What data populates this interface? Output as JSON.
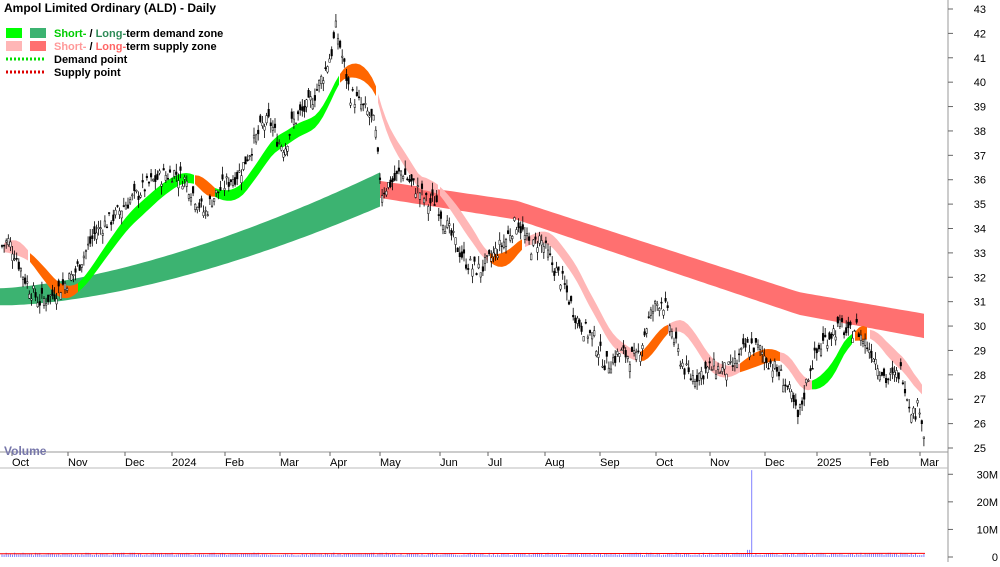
{
  "chart": {
    "title": "Ampol Limited Ordinary (ALD) - Daily",
    "legend": [
      {
        "short_color": "#00ff00",
        "long_color": "#3cb371",
        "prefix_short": "Short-",
        "sep": " / ",
        "prefix_long": "Long-",
        "suffix": "term demand zone",
        "prefix_short_color": "#00cc00",
        "prefix_long_color": "#2e8b57"
      },
      {
        "short_color": "#ffb6b6",
        "long_color": "#ff7070",
        "prefix_short": "Short-",
        "sep": " / ",
        "prefix_long": "Long-",
        "suffix": "term supply zone",
        "prefix_short_color": "#ff9999",
        "prefix_long_color": "#ff6666"
      },
      {
        "line_color": "#00dd00",
        "label": "Demand point"
      },
      {
        "line_color": "#dd0000",
        "label": "Supply point"
      }
    ],
    "volume_label": "Volume"
  },
  "chart_data": {
    "type": "candlestick",
    "title": "Ampol Limited Ordinary (ALD) - Daily",
    "y_ticks": [
      25,
      26,
      27,
      28,
      29,
      30,
      31,
      32,
      33,
      34,
      35,
      36,
      37,
      38,
      39,
      40,
      41,
      42,
      43
    ],
    "ylim": [
      24.5,
      43.2
    ],
    "x_ticks": [
      "Oct",
      "Nov",
      "Dec",
      "2024",
      "Feb",
      "Mar",
      "Apr",
      "May",
      "Jun",
      "Jul",
      "Aug",
      "Sep",
      "Oct",
      "Nov",
      "Dec",
      "2025",
      "Feb",
      "Mar"
    ],
    "volume_ticks": [
      "0",
      "10M",
      "20M",
      "30M"
    ],
    "volume_ylim": [
      0,
      33
    ],
    "price_path": [
      [
        0,
        33.2
      ],
      [
        8,
        33.5
      ],
      [
        15,
        33.0
      ],
      [
        22,
        32.2
      ],
      [
        30,
        31.5
      ],
      [
        40,
        31.0
      ],
      [
        50,
        31.2
      ],
      [
        58,
        31.5
      ],
      [
        66,
        31.8
      ],
      [
        75,
        32.2
      ],
      [
        85,
        33.0
      ],
      [
        95,
        33.8
      ],
      [
        105,
        34.2
      ],
      [
        115,
        34.5
      ],
      [
        125,
        35.0
      ],
      [
        135,
        35.3
      ],
      [
        145,
        35.7
      ],
      [
        155,
        36.0
      ],
      [
        165,
        36.2
      ],
      [
        175,
        36.3
      ],
      [
        185,
        36.0
      ],
      [
        195,
        35.3
      ],
      [
        205,
        34.6
      ],
      [
        212,
        35.2
      ],
      [
        220,
        35.6
      ],
      [
        230,
        36.0
      ],
      [
        240,
        36.3
      ],
      [
        248,
        37.0
      ],
      [
        255,
        37.6
      ],
      [
        262,
        38.2
      ],
      [
        270,
        38.4
      ],
      [
        278,
        37.6
      ],
      [
        285,
        37.3
      ],
      [
        292,
        38.3
      ],
      [
        300,
        38.7
      ],
      [
        308,
        39.0
      ],
      [
        316,
        39.6
      ],
      [
        325,
        40.5
      ],
      [
        332,
        41.3
      ],
      [
        336,
        42.2
      ],
      [
        340,
        41.5
      ],
      [
        345,
        40.5
      ],
      [
        350,
        39.5
      ],
      [
        356,
        39.3
      ],
      [
        362,
        39.0
      ],
      [
        370,
        38.6
      ],
      [
        375,
        38.2
      ],
      [
        378,
        36.8
      ],
      [
        382,
        35.5
      ],
      [
        388,
        35.8
      ],
      [
        395,
        36.0
      ],
      [
        402,
        36.4
      ],
      [
        410,
        35.9
      ],
      [
        420,
        35.5
      ],
      [
        428,
        35.0
      ],
      [
        436,
        35.2
      ],
      [
        442,
        34.5
      ],
      [
        450,
        33.8
      ],
      [
        458,
        33.2
      ],
      [
        465,
        32.7
      ],
      [
        472,
        32.4
      ],
      [
        480,
        32.3
      ],
      [
        488,
        32.6
      ],
      [
        495,
        33.0
      ],
      [
        505,
        33.5
      ],
      [
        512,
        34.0
      ],
      [
        518,
        34.3
      ],
      [
        525,
        33.6
      ],
      [
        532,
        33.2
      ],
      [
        540,
        33.6
      ],
      [
        547,
        33.0
      ],
      [
        555,
        32.3
      ],
      [
        563,
        31.8
      ],
      [
        570,
        31.0
      ],
      [
        578,
        30.2
      ],
      [
        586,
        29.8
      ],
      [
        594,
        29.5
      ],
      [
        600,
        28.9
      ],
      [
        606,
        28.4
      ],
      [
        612,
        28.6
      ],
      [
        620,
        28.9
      ],
      [
        628,
        28.8
      ],
      [
        636,
        28.6
      ],
      [
        642,
        29.3
      ],
      [
        648,
        30.2
      ],
      [
        655,
        30.8
      ],
      [
        661,
        31.1
      ],
      [
        666,
        30.7
      ],
      [
        672,
        29.7
      ],
      [
        678,
        28.9
      ],
      [
        684,
        28.3
      ],
      [
        690,
        27.9
      ],
      [
        698,
        28.0
      ],
      [
        706,
        28.2
      ],
      [
        714,
        28.3
      ],
      [
        722,
        28.2
      ],
      [
        730,
        28.2
      ],
      [
        738,
        28.6
      ],
      [
        745,
        29.1
      ],
      [
        752,
        29.2
      ],
      [
        760,
        29.0
      ],
      [
        768,
        28.6
      ],
      [
        776,
        28.2
      ],
      [
        784,
        27.8
      ],
      [
        792,
        27.0
      ],
      [
        798,
        26.2
      ],
      [
        804,
        27.2
      ],
      [
        810,
        28.3
      ],
      [
        818,
        29.0
      ],
      [
        826,
        29.5
      ],
      [
        834,
        29.8
      ],
      [
        842,
        30.0
      ],
      [
        848,
        29.6
      ],
      [
        856,
        30.0
      ],
      [
        862,
        29.5
      ],
      [
        868,
        29.2
      ],
      [
        874,
        28.8
      ],
      [
        880,
        28.3
      ],
      [
        886,
        27.8
      ],
      [
        894,
        27.9
      ],
      [
        902,
        28.2
      ],
      [
        908,
        27.0
      ],
      [
        914,
        26.4
      ],
      [
        920,
        26.8
      ],
      [
        925,
        25.2
      ]
    ]
  },
  "colors": {
    "demand_short": "#00ff00",
    "demand_long": "#3cb371",
    "supply_short": "#ffb6b6",
    "supply_long": "#ff7070",
    "orange": "#ff6600",
    "candle": "#000000",
    "volume": "#8080ff",
    "volume_ma": "#ff0000",
    "grid": "#cccccc",
    "axis_text": "#000000",
    "volume_label": "#7777aa"
  }
}
